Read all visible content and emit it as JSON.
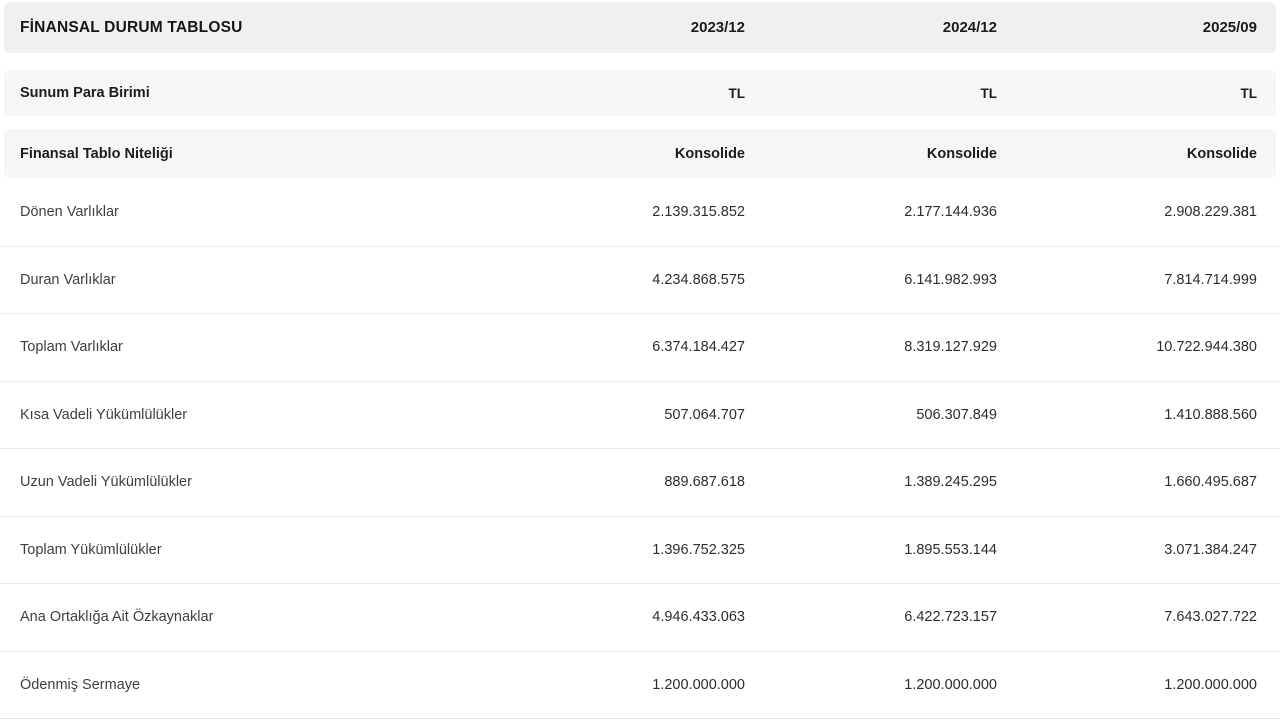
{
  "chart_data": {
    "type": "table",
    "title": "FİNANSAL DURUM TABLOSU",
    "columns": [
      "2023/12",
      "2024/12",
      "2025/09"
    ],
    "meta_rows": [
      {
        "label": "Sunum Para Birimi",
        "values": [
          "TL",
          "TL",
          "TL"
        ]
      },
      {
        "label": "Finansal Tablo Niteliği",
        "values": [
          "Konsolide",
          "Konsolide",
          "Konsolide"
        ]
      }
    ],
    "rows": [
      {
        "label": "Dönen Varlıklar",
        "values": [
          "2.139.315.852",
          "2.177.144.936",
          "2.908.229.381"
        ]
      },
      {
        "label": "Duran Varlıklar",
        "values": [
          "4.234.868.575",
          "6.141.982.993",
          "7.814.714.999"
        ]
      },
      {
        "label": "Toplam Varlıklar",
        "values": [
          "6.374.184.427",
          "8.319.127.929",
          "10.722.944.380"
        ]
      },
      {
        "label": "Kısa Vadeli Yükümlülükler",
        "values": [
          "507.064.707",
          "506.307.849",
          "1.410.888.560"
        ]
      },
      {
        "label": "Uzun Vadeli Yükümlülükler",
        "values": [
          "889.687.618",
          "1.389.245.295",
          "1.660.495.687"
        ]
      },
      {
        "label": "Toplam Yükümlülükler",
        "values": [
          "1.396.752.325",
          "1.895.553.144",
          "3.071.384.247"
        ]
      },
      {
        "label": "Ana Ortaklığa Ait Özkaynaklar",
        "values": [
          "4.946.433.063",
          "6.422.723.157",
          "7.643.027.722"
        ]
      },
      {
        "label": "Ödenmiş Sermaye",
        "values": [
          "1.200.000.000",
          "1.200.000.000",
          "1.200.000.000"
        ]
      }
    ]
  },
  "colors": {
    "page_bg": "#ffffff",
    "header_bg": "#f0f0f0",
    "meta_row_bg": "#f6f6f6",
    "row_divider": "#ebebeb",
    "text_primary": "#1c1c1c",
    "text_secondary": "#3f3f3f"
  }
}
